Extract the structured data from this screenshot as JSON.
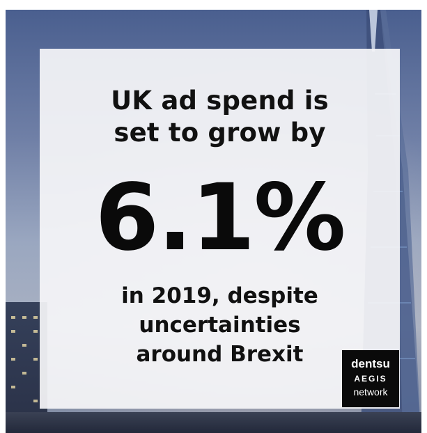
{
  "headline": {
    "line1": "UK ad spend is",
    "line2": "set to grow by"
  },
  "stat": {
    "value": "6.1%"
  },
  "subline": {
    "line1": "in 2019, despite",
    "line2": "uncertainties",
    "line3": "around Brexit"
  },
  "logo": {
    "line1": "dentsu",
    "line2": "AEGIS",
    "line3": "network"
  },
  "colors": {
    "text": "#111111",
    "card": "#f5f5f7",
    "logo_bg": "#0a0a0a",
    "sky": "#4a5f8f"
  }
}
